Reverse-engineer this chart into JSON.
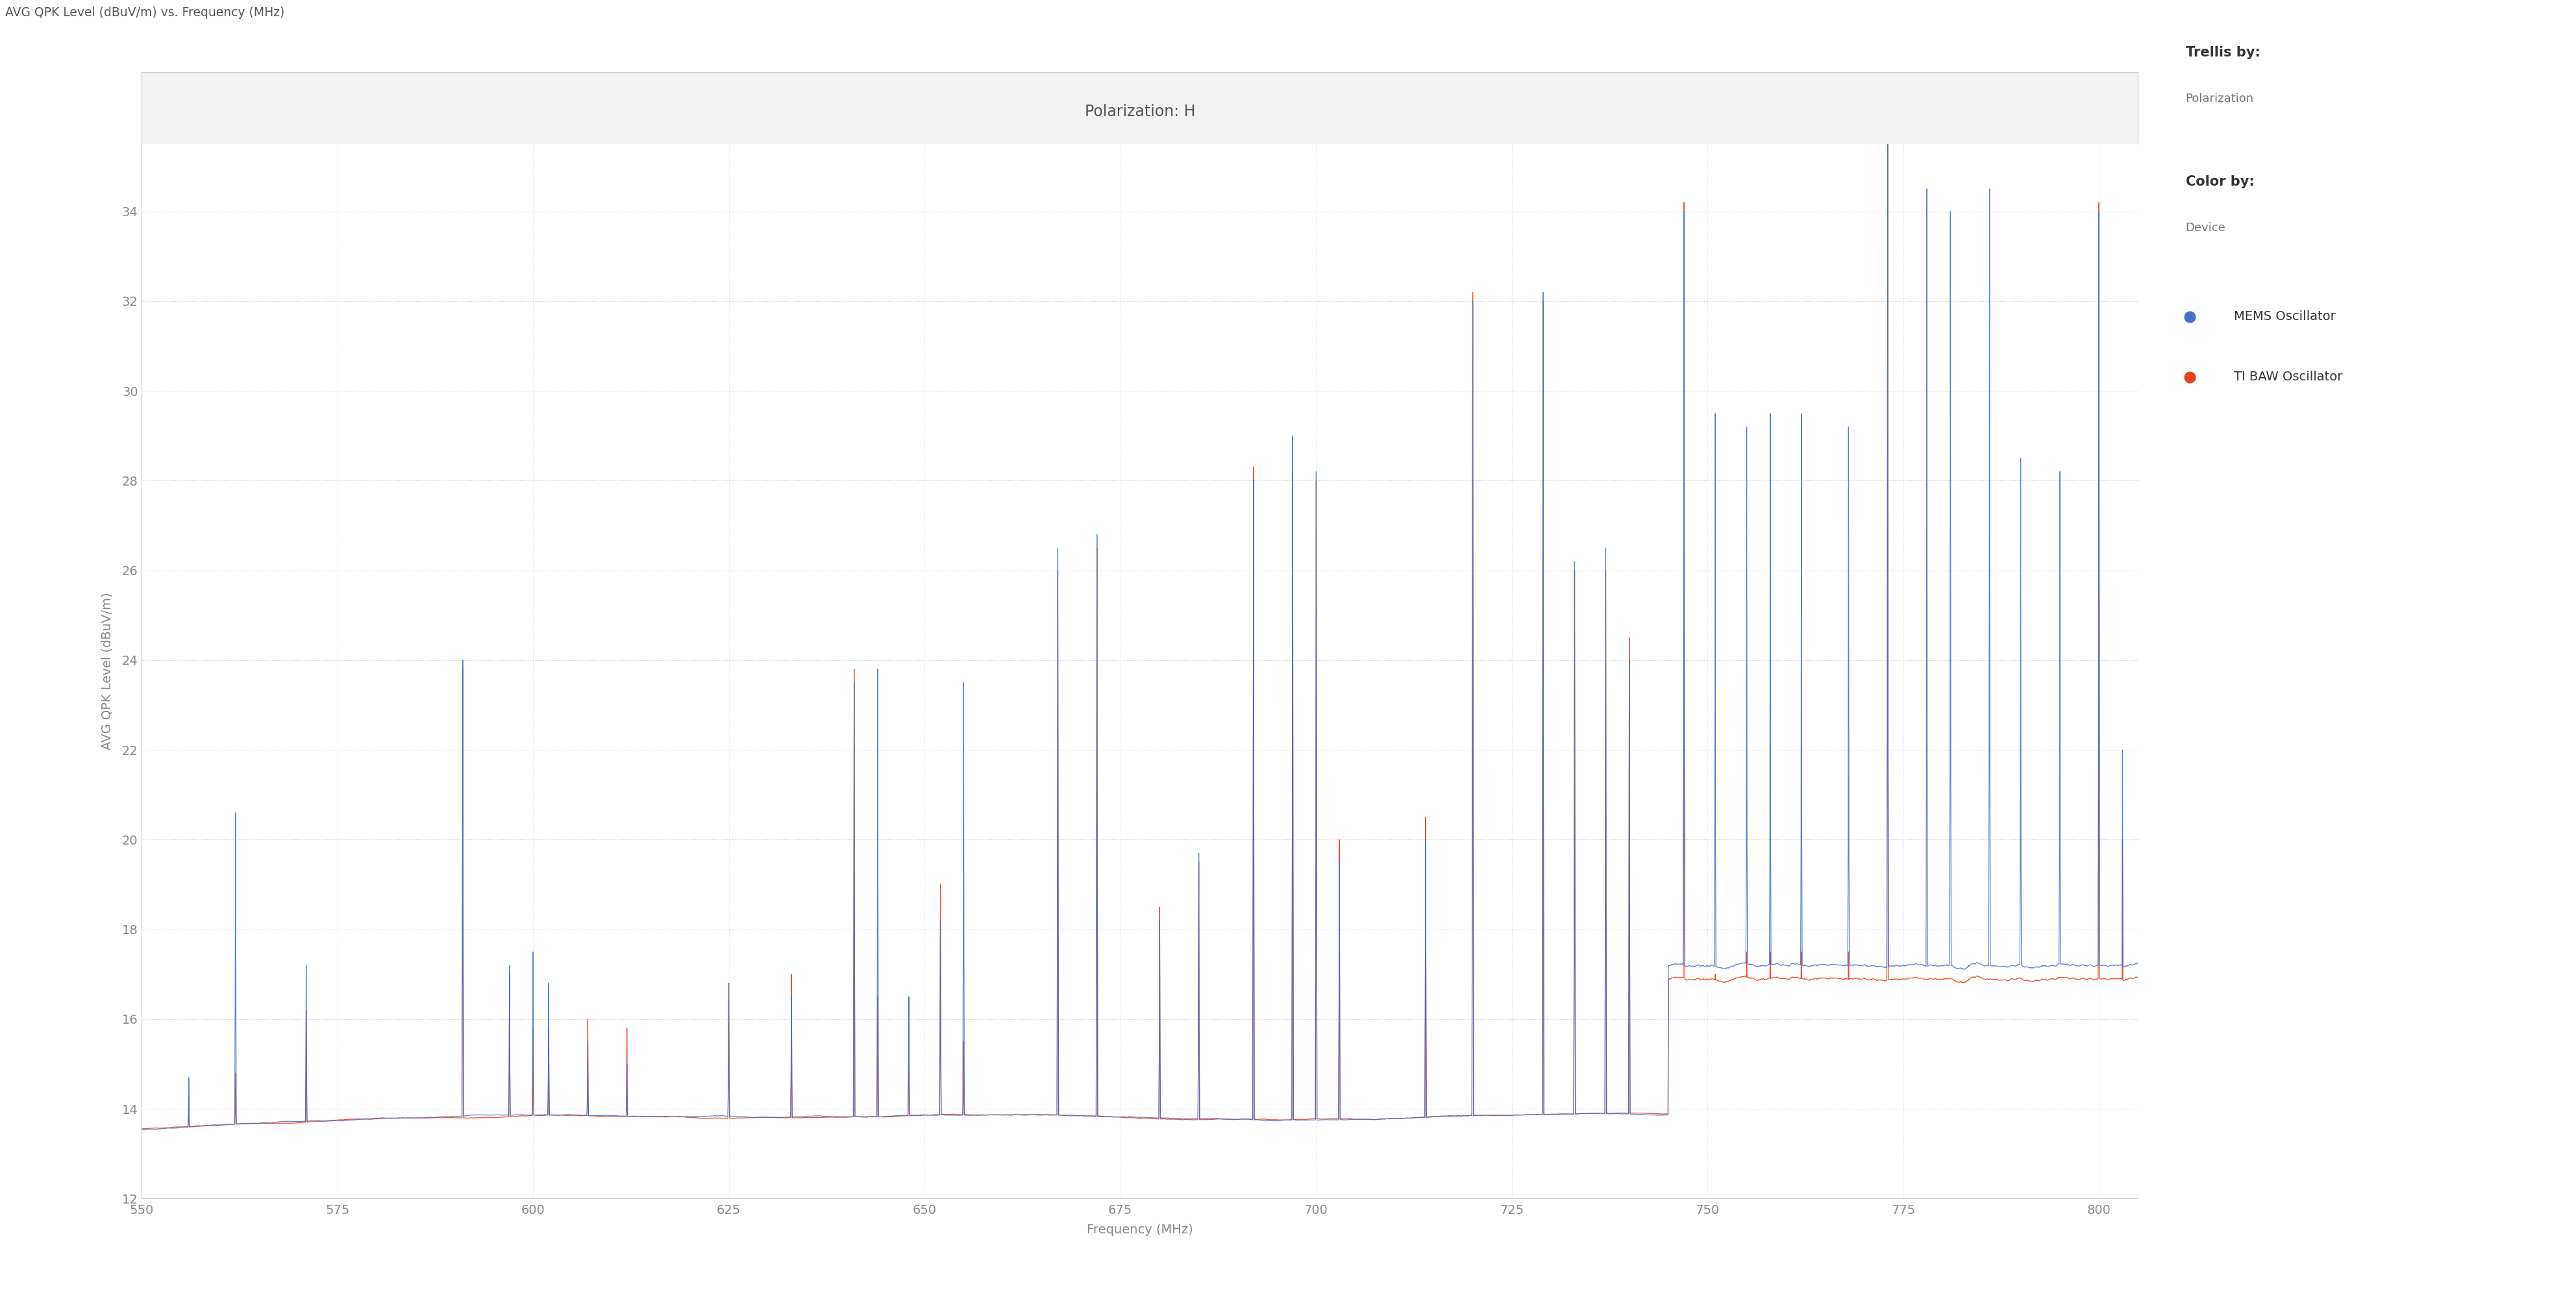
{
  "title": "Polarization: H",
  "xlabel": "Frequency (MHz)",
  "ylabel": "AVG QPK Level (dBuV/m)",
  "topleft_label": "AVG QPK Level (dBuV/m) vs. Frequency (MHz)",
  "xmin": 550,
  "xmax": 805,
  "ymin": 12,
  "ymax": 35.5,
  "yticks": [
    12,
    14,
    16,
    18,
    20,
    22,
    24,
    26,
    28,
    30,
    32,
    34
  ],
  "xticks": [
    550,
    575,
    600,
    625,
    650,
    675,
    700,
    725,
    750,
    775,
    800
  ],
  "mems_color": "#4472C4",
  "baw_color": "#E8401C",
  "background_color": "#FFFFFF",
  "grid_color": "#BBBBBB",
  "trellis_label": "Trellis by:",
  "trellis_value": "Polarization",
  "color_label": "Color by:",
  "color_value": "Device",
  "mems_label": "MEMS Oscillator",
  "baw_label": "TI BAW Oscillator",
  "noise_floor": 13.3,
  "seed": 42,
  "header_bg": "#F2F2F2",
  "header_border": "#CCCCCC",
  "title_color": "#555555",
  "tick_color": "#888888",
  "label_color": "#888888",
  "mems_spikes": [
    [
      556,
      14.7
    ],
    [
      562,
      20.6
    ],
    [
      571,
      17.2
    ],
    [
      591,
      24.0
    ],
    [
      597,
      17.2
    ],
    [
      600,
      17.5
    ],
    [
      602,
      16.8
    ],
    [
      607,
      15.5
    ],
    [
      612,
      15.0
    ],
    [
      625,
      16.8
    ],
    [
      633,
      16.5
    ],
    [
      641,
      23.5
    ],
    [
      644,
      23.8
    ],
    [
      648,
      16.5
    ],
    [
      652,
      18.2
    ],
    [
      655,
      23.5
    ],
    [
      667,
      26.5
    ],
    [
      672,
      26.8
    ],
    [
      680,
      18.2
    ],
    [
      685,
      19.7
    ],
    [
      692,
      28.0
    ],
    [
      697,
      29.0
    ],
    [
      700,
      28.2
    ],
    [
      703,
      19.5
    ],
    [
      714,
      20.0
    ],
    [
      720,
      32.0
    ],
    [
      729,
      32.2
    ],
    [
      733,
      26.2
    ],
    [
      737,
      26.5
    ],
    [
      740,
      24.0
    ],
    [
      747,
      34.0
    ],
    [
      751,
      29.5
    ],
    [
      755,
      29.2
    ],
    [
      758,
      29.5
    ],
    [
      762,
      29.5
    ],
    [
      768,
      29.2
    ],
    [
      773,
      35.5
    ],
    [
      778,
      34.5
    ],
    [
      781,
      34.0
    ],
    [
      786,
      34.5
    ],
    [
      790,
      28.5
    ],
    [
      795,
      28.2
    ],
    [
      800,
      34.0
    ],
    [
      803,
      22.0
    ]
  ],
  "baw_spikes": [
    [
      556,
      14.3
    ],
    [
      562,
      14.8
    ],
    [
      571,
      16.2
    ],
    [
      591,
      23.8
    ],
    [
      597,
      17.0
    ],
    [
      600,
      15.8
    ],
    [
      602,
      15.8
    ],
    [
      607,
      16.0
    ],
    [
      612,
      15.8
    ],
    [
      625,
      16.8
    ],
    [
      633,
      17.0
    ],
    [
      641,
      23.8
    ],
    [
      644,
      16.5
    ],
    [
      648,
      16.5
    ],
    [
      652,
      19.0
    ],
    [
      655,
      15.5
    ],
    [
      667,
      26.0
    ],
    [
      672,
      26.5
    ],
    [
      680,
      18.5
    ],
    [
      685,
      19.5
    ],
    [
      692,
      28.3
    ],
    [
      697,
      28.2
    ],
    [
      700,
      28.0
    ],
    [
      703,
      20.0
    ],
    [
      714,
      20.5
    ],
    [
      720,
      32.2
    ],
    [
      729,
      32.0
    ],
    [
      733,
      26.0
    ],
    [
      737,
      26.0
    ],
    [
      740,
      24.5
    ],
    [
      747,
      34.2
    ],
    [
      751,
      17.0
    ],
    [
      755,
      17.5
    ],
    [
      758,
      17.5
    ],
    [
      762,
      17.5
    ],
    [
      768,
      17.5
    ],
    [
      773,
      35.8
    ],
    [
      778,
      16.0
    ],
    [
      781,
      16.5
    ],
    [
      786,
      16.5
    ],
    [
      790,
      16.5
    ],
    [
      795,
      16.5
    ],
    [
      800,
      34.2
    ],
    [
      803,
      20.0
    ]
  ],
  "dense_region_start": 745,
  "dense_region_end": 805
}
